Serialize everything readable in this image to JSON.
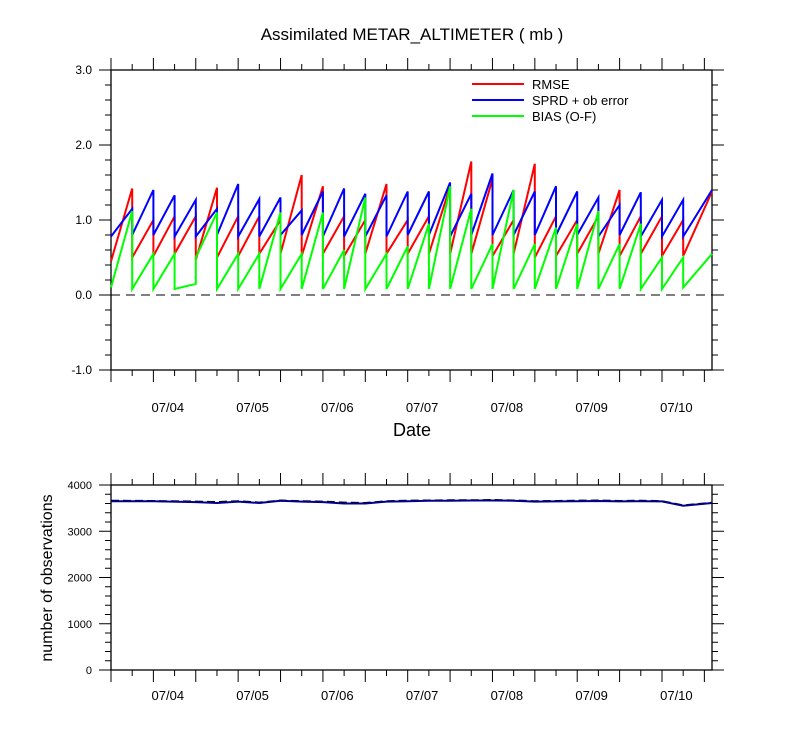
{
  "chart_data": [
    {
      "type": "line",
      "title": "Assimilated METAR_ALTIMETER ( mb )",
      "xlabel": "Date",
      "ylabel": "",
      "ylim": [
        -1.0,
        3.0
      ],
      "yticks": [
        "-1.0",
        "0.0",
        "1.0",
        "2.0",
        "3.0"
      ],
      "xlim": [
        3.33,
        10.42
      ],
      "xticks": [
        {
          "x": 4.0,
          "label": "07/04"
        },
        {
          "x": 5.0,
          "label": "07/05"
        },
        {
          "x": 6.0,
          "label": "07/06"
        },
        {
          "x": 7.0,
          "label": "07/07"
        },
        {
          "x": 8.0,
          "label": "07/08"
        },
        {
          "x": 9.0,
          "label": "07/09"
        },
        {
          "x": 10.0,
          "label": "07/10"
        }
      ],
      "reference_line": 0.0,
      "grid": false,
      "legend_position": "top-right",
      "colors": {
        "RMSE": "#ff0000",
        "SPRD + ob error": "#0000ff",
        "BIAS (O-F)": "#00ff00"
      },
      "series": [
        {
          "name": "RMSE",
          "color": "#ff0000",
          "points": [
            [
              3.33,
              0.45
            ],
            [
              3.58,
              1.42
            ],
            [
              3.58,
              0.5
            ],
            [
              3.83,
              1.0
            ],
            [
              3.83,
              0.52
            ],
            [
              4.08,
              1.05
            ],
            [
              4.08,
              0.55
            ],
            [
              4.33,
              1.05
            ],
            [
              4.33,
              0.47
            ],
            [
              4.58,
              1.43
            ],
            [
              4.58,
              0.5
            ],
            [
              4.83,
              1.05
            ],
            [
              4.83,
              0.52
            ],
            [
              5.08,
              1.05
            ],
            [
              5.08,
              0.55
            ],
            [
              5.33,
              1.0
            ],
            [
              5.33,
              0.55
            ],
            [
              5.58,
              1.6
            ],
            [
              5.58,
              0.52
            ],
            [
              5.83,
              1.45
            ],
            [
              5.83,
              0.55
            ],
            [
              6.08,
              1.05
            ],
            [
              6.08,
              0.52
            ],
            [
              6.33,
              1.0
            ],
            [
              6.33,
              0.55
            ],
            [
              6.58,
              1.48
            ],
            [
              6.58,
              0.55
            ],
            [
              6.83,
              1.0
            ],
            [
              6.83,
              0.55
            ],
            [
              7.08,
              1.05
            ],
            [
              7.08,
              0.55
            ],
            [
              7.33,
              1.45
            ],
            [
              7.33,
              0.55
            ],
            [
              7.58,
              1.78
            ],
            [
              7.58,
              0.55
            ],
            [
              7.83,
              1.55
            ],
            [
              7.83,
              0.52
            ],
            [
              8.08,
              1.0
            ],
            [
              8.08,
              0.55
            ],
            [
              8.33,
              1.75
            ],
            [
              8.33,
              0.5
            ],
            [
              8.58,
              1.05
            ],
            [
              8.58,
              0.52
            ],
            [
              8.83,
              1.0
            ],
            [
              8.83,
              0.55
            ],
            [
              9.08,
              1.05
            ],
            [
              9.08,
              0.55
            ],
            [
              9.33,
              1.4
            ],
            [
              9.33,
              0.52
            ],
            [
              9.58,
              1.05
            ],
            [
              9.58,
              0.55
            ],
            [
              9.83,
              1.05
            ],
            [
              9.83,
              0.52
            ],
            [
              10.08,
              1.0
            ],
            [
              10.08,
              0.52
            ],
            [
              10.42,
              1.38
            ]
          ]
        },
        {
          "name": "SPRD + ob error",
          "color": "#0000ff",
          "points": [
            [
              3.33,
              0.78
            ],
            [
              3.58,
              1.15
            ],
            [
              3.58,
              0.8
            ],
            [
              3.83,
              1.4
            ],
            [
              3.83,
              0.8
            ],
            [
              4.08,
              1.33
            ],
            [
              4.08,
              0.78
            ],
            [
              4.33,
              1.27
            ],
            [
              4.33,
              0.78
            ],
            [
              4.58,
              1.15
            ],
            [
              4.58,
              0.8
            ],
            [
              4.83,
              1.48
            ],
            [
              4.83,
              0.78
            ],
            [
              5.08,
              1.28
            ],
            [
              5.08,
              0.78
            ],
            [
              5.33,
              1.3
            ],
            [
              5.33,
              0.8
            ],
            [
              5.58,
              1.13
            ],
            [
              5.58,
              0.8
            ],
            [
              5.83,
              1.38
            ],
            [
              5.83,
              0.78
            ],
            [
              6.08,
              1.42
            ],
            [
              6.08,
              0.78
            ],
            [
              6.33,
              1.35
            ],
            [
              6.33,
              0.78
            ],
            [
              6.58,
              1.33
            ],
            [
              6.58,
              0.78
            ],
            [
              6.83,
              1.38
            ],
            [
              6.83,
              0.8
            ],
            [
              7.08,
              1.38
            ],
            [
              7.08,
              0.8
            ],
            [
              7.33,
              1.5
            ],
            [
              7.33,
              0.78
            ],
            [
              7.58,
              1.35
            ],
            [
              7.58,
              0.8
            ],
            [
              7.83,
              1.62
            ],
            [
              7.83,
              0.8
            ],
            [
              8.08,
              1.4
            ],
            [
              8.08,
              0.8
            ],
            [
              8.33,
              1.38
            ],
            [
              8.33,
              0.8
            ],
            [
              8.58,
              1.45
            ],
            [
              8.58,
              0.8
            ],
            [
              8.83,
              1.38
            ],
            [
              8.83,
              0.8
            ],
            [
              9.08,
              1.3
            ],
            [
              9.08,
              0.78
            ],
            [
              9.33,
              1.2
            ],
            [
              9.33,
              0.8
            ],
            [
              9.58,
              1.37
            ],
            [
              9.58,
              0.78
            ],
            [
              9.83,
              1.27
            ],
            [
              9.83,
              0.78
            ],
            [
              10.08,
              1.27
            ],
            [
              10.08,
              0.78
            ],
            [
              10.42,
              1.4
            ]
          ]
        },
        {
          "name": "BIAS (O-F)",
          "color": "#00ff00",
          "points": [
            [
              3.33,
              0.1
            ],
            [
              3.58,
              1.12
            ],
            [
              3.58,
              0.08
            ],
            [
              3.83,
              0.55
            ],
            [
              3.83,
              0.08
            ],
            [
              4.08,
              0.55
            ],
            [
              4.08,
              0.08
            ],
            [
              4.33,
              0.15
            ],
            [
              4.33,
              0.5
            ],
            [
              4.58,
              1.1
            ],
            [
              4.58,
              0.08
            ],
            [
              4.83,
              0.55
            ],
            [
              4.83,
              0.08
            ],
            [
              5.08,
              0.55
            ],
            [
              5.08,
              0.08
            ],
            [
              5.33,
              1.1
            ],
            [
              5.33,
              0.08
            ],
            [
              5.58,
              0.55
            ],
            [
              5.58,
              0.08
            ],
            [
              5.83,
              1.1
            ],
            [
              5.83,
              0.08
            ],
            [
              6.08,
              0.6
            ],
            [
              6.08,
              0.08
            ],
            [
              6.33,
              1.3
            ],
            [
              6.33,
              0.08
            ],
            [
              6.58,
              0.55
            ],
            [
              6.58,
              0.08
            ],
            [
              6.83,
              0.65
            ],
            [
              6.83,
              0.08
            ],
            [
              7.08,
              0.95
            ],
            [
              7.08,
              0.08
            ],
            [
              7.33,
              1.45
            ],
            [
              7.33,
              0.08
            ],
            [
              7.58,
              1.15
            ],
            [
              7.58,
              0.08
            ],
            [
              7.83,
              0.68
            ],
            [
              7.83,
              0.08
            ],
            [
              8.08,
              1.4
            ],
            [
              8.08,
              0.08
            ],
            [
              8.33,
              0.68
            ],
            [
              8.33,
              0.08
            ],
            [
              8.58,
              0.9
            ],
            [
              8.58,
              0.08
            ],
            [
              8.83,
              0.95
            ],
            [
              8.83,
              0.08
            ],
            [
              9.08,
              1.12
            ],
            [
              9.08,
              0.08
            ],
            [
              9.33,
              0.68
            ],
            [
              9.33,
              0.08
            ],
            [
              9.58,
              0.95
            ],
            [
              9.58,
              0.08
            ],
            [
              9.83,
              0.5
            ],
            [
              9.83,
              0.08
            ],
            [
              10.08,
              0.5
            ],
            [
              10.08,
              0.1
            ],
            [
              10.42,
              0.55
            ]
          ]
        }
      ]
    },
    {
      "type": "line",
      "title": "",
      "xlabel": "",
      "ylabel": "number of observations",
      "ylim": [
        0,
        4000
      ],
      "yticks": [
        "0",
        "1000",
        "2000",
        "3000",
        "4000"
      ],
      "xlim": [
        3.33,
        10.42
      ],
      "xticks": [
        {
          "x": 4.0,
          "label": "07/04"
        },
        {
          "x": 5.0,
          "label": "07/05"
        },
        {
          "x": 6.0,
          "label": "07/06"
        },
        {
          "x": 7.0,
          "label": "07/07"
        },
        {
          "x": 8.0,
          "label": "07/08"
        },
        {
          "x": 9.0,
          "label": "07/09"
        },
        {
          "x": 10.0,
          "label": "07/10"
        }
      ],
      "grid": false,
      "series": [
        {
          "color": "#000000",
          "dashed": true,
          "points": [
            [
              3.33,
              3660
            ],
            [
              3.83,
              3655
            ],
            [
              4.33,
              3640
            ],
            [
              4.58,
              3630
            ],
            [
              4.83,
              3650
            ],
            [
              5.08,
              3620
            ],
            [
              5.33,
              3665
            ],
            [
              5.58,
              3650
            ],
            [
              5.83,
              3640
            ],
            [
              6.08,
              3620
            ],
            [
              6.33,
              3610
            ],
            [
              6.58,
              3650
            ],
            [
              6.83,
              3660
            ],
            [
              7.08,
              3665
            ],
            [
              7.33,
              3670
            ],
            [
              7.58,
              3670
            ],
            [
              7.83,
              3675
            ],
            [
              8.08,
              3665
            ],
            [
              8.33,
              3650
            ],
            [
              8.58,
              3655
            ],
            [
              8.83,
              3660
            ],
            [
              9.08,
              3665
            ],
            [
              9.33,
              3655
            ],
            [
              9.58,
              3660
            ],
            [
              9.83,
              3650
            ],
            [
              10.08,
              3560
            ],
            [
              10.42,
              3615
            ]
          ]
        },
        {
          "color": "#00008b",
          "dashed": false,
          "points": [
            [
              3.33,
              3650
            ],
            [
              3.83,
              3650
            ],
            [
              4.33,
              3630
            ],
            [
              4.58,
              3610
            ],
            [
              4.83,
              3640
            ],
            [
              5.08,
              3610
            ],
            [
              5.33,
              3660
            ],
            [
              5.58,
              3640
            ],
            [
              5.83,
              3630
            ],
            [
              6.08,
              3600
            ],
            [
              6.33,
              3600
            ],
            [
              6.58,
              3640
            ],
            [
              6.83,
              3650
            ],
            [
              7.08,
              3660
            ],
            [
              7.33,
              3660
            ],
            [
              7.58,
              3665
            ],
            [
              7.83,
              3665
            ],
            [
              8.08,
              3660
            ],
            [
              8.33,
              3640
            ],
            [
              8.58,
              3645
            ],
            [
              8.83,
              3650
            ],
            [
              9.08,
              3655
            ],
            [
              9.33,
              3645
            ],
            [
              9.58,
              3650
            ],
            [
              9.83,
              3645
            ],
            [
              10.08,
              3550
            ],
            [
              10.42,
              3610
            ]
          ]
        }
      ]
    }
  ]
}
